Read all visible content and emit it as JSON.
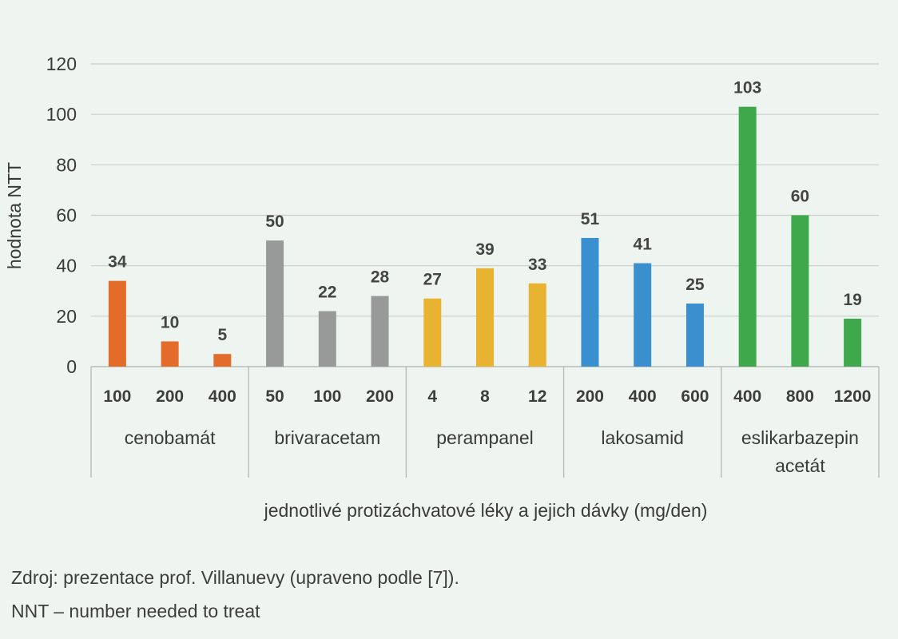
{
  "chart_data": {
    "type": "bar",
    "ylabel": "hodnota NTT",
    "xlabel": "jednotlivé protizáchvatové léky a jejich dávky (mg/den)",
    "ylim": [
      0,
      120
    ],
    "yticks": [
      0,
      20,
      40,
      60,
      80,
      100,
      120
    ],
    "grid": true,
    "groups": [
      {
        "name": "cenobamát",
        "color": "#e36c2a",
        "bars": [
          {
            "dose": "100",
            "value": 34
          },
          {
            "dose": "200",
            "value": 10
          },
          {
            "dose": "400",
            "value": 5
          }
        ]
      },
      {
        "name": "brivaracetam",
        "color": "#979a98",
        "bars": [
          {
            "dose": "50",
            "value": 50
          },
          {
            "dose": "100",
            "value": 22
          },
          {
            "dose": "200",
            "value": 28
          }
        ]
      },
      {
        "name": "perampanel",
        "color": "#e8b330",
        "bars": [
          {
            "dose": "4",
            "value": 27
          },
          {
            "dose": "8",
            "value": 39
          },
          {
            "dose": "12",
            "value": 33
          }
        ]
      },
      {
        "name": "lakosamid",
        "color": "#3a8fcf",
        "bars": [
          {
            "dose": "200",
            "value": 51
          },
          {
            "dose": "400",
            "value": 41
          },
          {
            "dose": "600",
            "value": 25
          }
        ]
      },
      {
        "name": "eslikarbazepin\nacetát",
        "color": "#3fa84a",
        "bars": [
          {
            "dose": "400",
            "value": 103
          },
          {
            "dose": "800",
            "value": 60
          },
          {
            "dose": "1200",
            "value": 19
          }
        ]
      }
    ]
  },
  "notes": {
    "source": "Zdroj: prezentace prof. Villanuevy (upraveno podle [7]).",
    "nnt": "NNT – number needed to treat"
  }
}
